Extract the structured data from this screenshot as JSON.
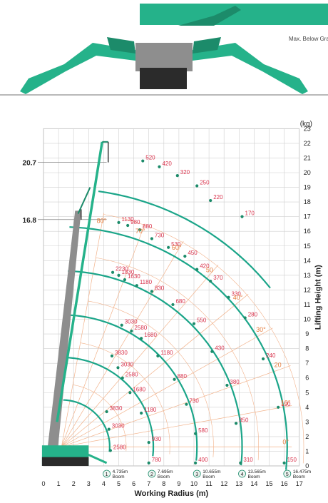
{
  "caption": "Max. Below Gra",
  "chart_data": {
    "type": "load-chart",
    "title": "",
    "units_label": "(kg)",
    "xlabel": "Working Radius (m)",
    "ylabel": "Lifting Height (m)",
    "xlim": [
      0,
      17
    ],
    "ylim": [
      0,
      23
    ],
    "x_ticks": [
      0,
      1,
      2,
      3,
      4,
      5,
      6,
      7,
      8,
      9,
      10,
      11,
      12,
      13,
      14,
      15,
      16,
      17
    ],
    "y_ticks": [
      0,
      1,
      2,
      3,
      4,
      5,
      6,
      7,
      8,
      9,
      10,
      11,
      12,
      13,
      14,
      15,
      16,
      17,
      18,
      19,
      20,
      21,
      22,
      23
    ],
    "grid": true,
    "marked_heights": [
      {
        "label": "20.7",
        "y": 20.7
      },
      {
        "label": "16.8",
        "y": 16.8
      }
    ],
    "boom_badges": [
      {
        "num": "1",
        "line1": "4.735m",
        "line2": "Boom",
        "x": 4.2
      },
      {
        "num": "2",
        "line1": "7.695m",
        "line2": "Boom",
        "x": 7.2
      },
      {
        "num": "3",
        "line1": "10.655m",
        "line2": "Boom",
        "x": 10.2
      },
      {
        "num": "4",
        "line1": "13.565m",
        "line2": "Boom",
        "x": 13.2
      },
      {
        "num": "5",
        "line1": "16.475m",
        "line2": "Boom",
        "x": 16.2
      }
    ],
    "angles": [
      {
        "label": "80°",
        "deg": 80
      },
      {
        "label": "70°",
        "deg": 70
      },
      {
        "label": "60°",
        "deg": 60
      },
      {
        "label": "50",
        "deg": 50
      },
      {
        "label": "40°",
        "deg": 40
      },
      {
        "label": "30°",
        "deg": 30
      },
      {
        "label": "20",
        "deg": 20
      },
      {
        "label": "10°",
        "deg": 10
      },
      {
        "label": "0°",
        "deg": 0
      }
    ],
    "load_points": [
      {
        "x": 4.45,
        "y": 1.05,
        "value": "2580"
      },
      {
        "x": 4.35,
        "y": 2.5,
        "value": "3030"
      },
      {
        "x": 4.2,
        "y": 3.7,
        "value": "3830"
      },
      {
        "x": 7.0,
        "y": 1.6,
        "value": "930"
      },
      {
        "x": 7.0,
        "y": 0.2,
        "value": "780"
      },
      {
        "x": 6.5,
        "y": 3.6,
        "value": "1180"
      },
      {
        "x": 5.75,
        "y": 5.0,
        "value": "1680"
      },
      {
        "x": 5.25,
        "y": 6.0,
        "value": "2580"
      },
      {
        "x": 4.95,
        "y": 6.7,
        "value": "3030"
      },
      {
        "x": 4.55,
        "y": 7.5,
        "value": "3830"
      },
      {
        "x": 10.1,
        "y": 0.2,
        "value": "400"
      },
      {
        "x": 10.1,
        "y": 2.2,
        "value": "580"
      },
      {
        "x": 9.5,
        "y": 4.2,
        "value": "730"
      },
      {
        "x": 8.7,
        "y": 5.9,
        "value": "880"
      },
      {
        "x": 7.6,
        "y": 7.5,
        "value": "1180"
      },
      {
        "x": 6.5,
        "y": 8.7,
        "value": "1680"
      },
      {
        "x": 5.85,
        "y": 9.2,
        "value": "2580"
      },
      {
        "x": 5.2,
        "y": 9.6,
        "value": "3030"
      },
      {
        "x": 13.1,
        "y": 0.2,
        "value": "310"
      },
      {
        "x": 12.8,
        "y": 2.9,
        "value": "350"
      },
      {
        "x": 12.2,
        "y": 5.5,
        "value": "380"
      },
      {
        "x": 11.2,
        "y": 7.8,
        "value": "430"
      },
      {
        "x": 10.0,
        "y": 9.7,
        "value": "550"
      },
      {
        "x": 8.6,
        "y": 11.0,
        "value": "680"
      },
      {
        "x": 7.2,
        "y": 11.9,
        "value": "830"
      },
      {
        "x": 6.2,
        "y": 12.3,
        "value": "1180"
      },
      {
        "x": 5.4,
        "y": 12.7,
        "value": "1630"
      },
      {
        "x": 5.0,
        "y": 13.0,
        "value": "1830"
      },
      {
        "x": 4.6,
        "y": 13.2,
        "value": "2230"
      },
      {
        "x": 16.0,
        "y": 0.2,
        "value": "150"
      },
      {
        "x": 15.6,
        "y": 4.0,
        "value": "190"
      },
      {
        "x": 14.6,
        "y": 7.3,
        "value": "240"
      },
      {
        "x": 13.4,
        "y": 10.1,
        "value": "280"
      },
      {
        "x": 12.3,
        "y": 11.5,
        "value": "330"
      },
      {
        "x": 11.1,
        "y": 12.6,
        "value": "370"
      },
      {
        "x": 10.2,
        "y": 13.4,
        "value": "420"
      },
      {
        "x": 9.4,
        "y": 14.3,
        "value": "450"
      },
      {
        "x": 8.3,
        "y": 14.9,
        "value": "530"
      },
      {
        "x": 7.2,
        "y": 15.5,
        "value": "730"
      },
      {
        "x": 6.4,
        "y": 16.1,
        "value": "880"
      },
      {
        "x": 5.6,
        "y": 16.4,
        "value": "980"
      },
      {
        "x": 5.0,
        "y": 16.6,
        "value": "1130"
      },
      {
        "x": 13.2,
        "y": 17.0,
        "value": "170"
      },
      {
        "x": 11.1,
        "y": 18.1,
        "value": "220"
      },
      {
        "x": 10.2,
        "y": 19.1,
        "value": "250"
      },
      {
        "x": 8.9,
        "y": 19.8,
        "value": "320"
      },
      {
        "x": 7.7,
        "y": 20.4,
        "value": "420"
      },
      {
        "x": 6.6,
        "y": 20.8,
        "value": "520"
      }
    ]
  },
  "colors": {
    "boom": "#25b28a",
    "boom_dark": "#1c8b6a",
    "arc": "#1ba589",
    "value": "#d9344d",
    "angle": "#e67c3b",
    "angle_line": "#f2b38c",
    "grid": "#cfcfcf",
    "axis_text": "#222222",
    "machine_grey": "#8e8e8e",
    "machine_dark": "#2b2b2b"
  }
}
